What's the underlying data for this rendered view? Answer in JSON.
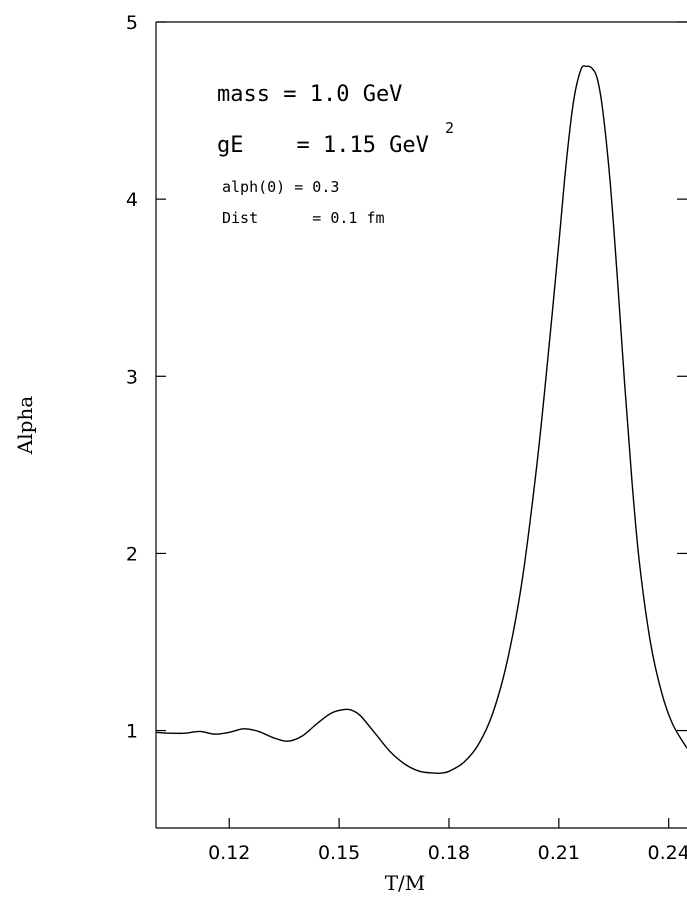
{
  "chart_data": {
    "type": "line",
    "title": "",
    "xlabel": "T/M",
    "ylabel": "Alpha",
    "xlim": [
      0.1,
      0.245
    ],
    "ylim": [
      0.45,
      5.0
    ],
    "xticks": [
      0.12,
      0.15,
      0.18,
      0.21,
      0.24
    ],
    "xtick_labels": [
      "0.12",
      "0.15",
      "0.18",
      "0.21",
      "0.24"
    ],
    "yticks": [
      1,
      2,
      3,
      4,
      5
    ],
    "ytick_labels": [
      "1",
      "2",
      "3",
      "4",
      "5"
    ],
    "grid": false,
    "annotations": {
      "mass": "mass = 1.0 GeV",
      "ge_text": "gE    = 1.15 GeV",
      "ge_superscript": "2",
      "alpha0": "alph(0) = 0.3",
      "dist": "Dist      = 0.1 fm"
    },
    "series": [
      {
        "x": [
          0.1,
          0.104,
          0.108,
          0.112,
          0.116,
          0.12,
          0.124,
          0.128,
          0.132,
          0.136,
          0.14,
          0.144,
          0.148,
          0.152,
          0.154,
          0.156,
          0.16,
          0.164,
          0.168,
          0.172,
          0.176,
          0.178,
          0.18,
          0.184,
          0.188,
          0.192,
          0.196,
          0.2,
          0.204,
          0.207,
          0.21,
          0.212,
          0.214,
          0.216,
          0.2175,
          0.219,
          0.2205,
          0.222,
          0.224,
          0.226,
          0.228,
          0.23,
          0.232,
          0.235,
          0.238,
          0.241,
          0.245
        ],
        "y": [
          0.99,
          0.985,
          0.985,
          0.995,
          0.98,
          0.99,
          1.01,
          0.995,
          0.96,
          0.94,
          0.97,
          1.04,
          1.1,
          1.12,
          1.11,
          1.08,
          0.98,
          0.88,
          0.81,
          0.77,
          0.76,
          0.76,
          0.77,
          0.82,
          0.92,
          1.1,
          1.4,
          1.85,
          2.5,
          3.1,
          3.75,
          4.2,
          4.55,
          4.73,
          4.75,
          4.74,
          4.68,
          4.5,
          4.1,
          3.55,
          2.95,
          2.4,
          1.95,
          1.5,
          1.22,
          1.04,
          0.9
        ]
      }
    ]
  }
}
